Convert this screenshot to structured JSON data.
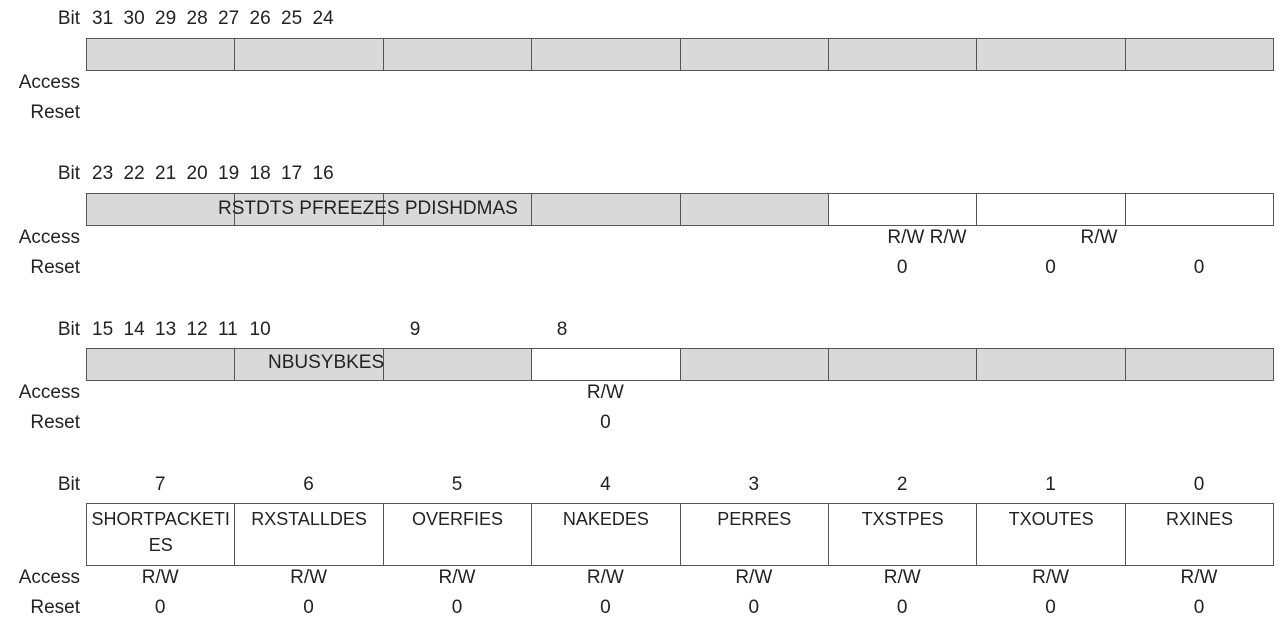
{
  "sections": [
    {
      "bit_label": "Bit",
      "bits": [
        31,
        30,
        29,
        28,
        27,
        26,
        25,
        24
      ],
      "access_label": "Access",
      "reset_label": "Reset",
      "fields": [],
      "access": [],
      "reset": []
    },
    {
      "bit_label": "Bit",
      "bits": [
        23,
        22,
        21,
        20,
        19,
        18,
        17,
        16
      ],
      "access_label": "Access",
      "reset_label": "Reset",
      "fields": [
        "RSTDTS PFREEZES PDISHDMAS"
      ],
      "access": [
        "R/W R/W",
        "R/W"
      ],
      "reset": [
        0,
        0,
        0
      ]
    },
    {
      "bit_label": "Bit",
      "bits": [
        15,
        14,
        13,
        12,
        11,
        10,
        9,
        8
      ],
      "access_label": "Access",
      "reset_label": "Reset",
      "fields": [
        "NBUSYBKES"
      ],
      "access": [
        "R/W"
      ],
      "reset": [
        0
      ]
    },
    {
      "bit_label": "Bit",
      "bits": [
        7,
        6,
        5,
        4,
        3,
        2,
        1,
        0
      ],
      "access_label": "Access",
      "reset_label": "Reset",
      "fields": [
        "SHORTPACKETIES",
        "RXSTALLDES",
        "OVERFIES",
        "NAKEDES",
        "PERRES",
        "TXSTPES",
        "TXOUTES",
        "RXINES"
      ],
      "access": [
        "R/W",
        "R/W",
        "R/W",
        "R/W",
        "R/W",
        "R/W",
        "R/W",
        "R/W"
      ],
      "reset": [
        0,
        0,
        0,
        0,
        0,
        0,
        0,
        0
      ]
    }
  ]
}
